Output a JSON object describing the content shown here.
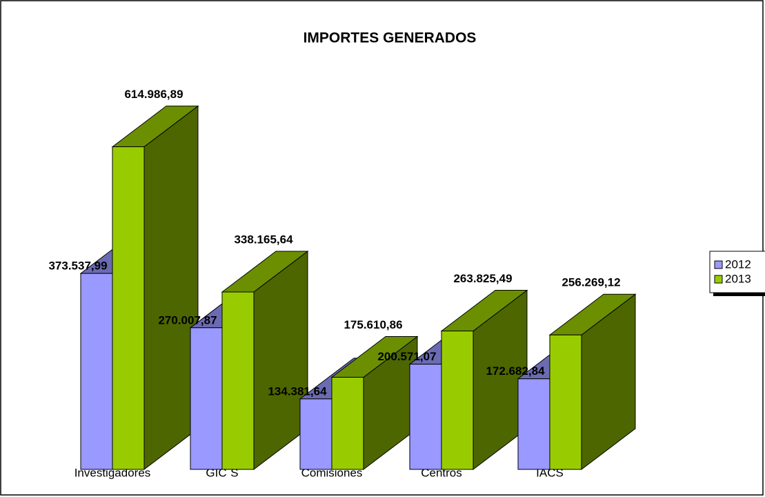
{
  "chart_data": {
    "type": "bar3d",
    "title": "IMPORTES GENERADOS",
    "categories": [
      "Investigadores",
      "GIC´S",
      "Comisiones",
      "Centros",
      "IACS"
    ],
    "series": [
      {
        "name": "2012",
        "color": "#9999ff",
        "values": [
          373537.99,
          270007.87,
          134381.64,
          200571.07,
          172682.84
        ],
        "value_labels": [
          "373.537,99",
          "270.007,87",
          "134.381,64",
          "200.571,07",
          "172.682,84"
        ]
      },
      {
        "name": "2013",
        "color": "#99cc00",
        "values": [
          614986.89,
          338165.64,
          175610.86,
          263825.49,
          256269.12
        ],
        "value_labels": [
          "614.986,89",
          "338.165,64",
          "175.610,86",
          "263.825,49",
          "256.269,12"
        ]
      }
    ],
    "ylim": [
      0,
      700000
    ],
    "legend": "right"
  }
}
